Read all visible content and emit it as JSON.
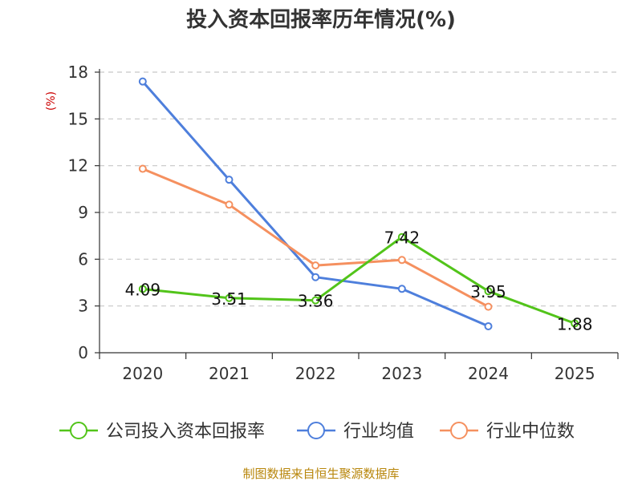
{
  "chart_data": {
    "type": "line",
    "title": "投入资本回报率历年情况(%)",
    "ylabel": "(%)",
    "xlabel": "",
    "categories": [
      "2020",
      "2021",
      "2022",
      "2023",
      "2024",
      "2025"
    ],
    "ylim": [
      0,
      18
    ],
    "yticks": [
      0,
      3,
      6,
      9,
      12,
      15,
      18
    ],
    "grid": true,
    "legend_position": "bottom",
    "series": [
      {
        "name": "公司投入资本回报率",
        "color": "#52c41a",
        "values": [
          4.09,
          3.51,
          3.36,
          7.42,
          3.95,
          1.88
        ],
        "labels": [
          "4.09",
          "3.51",
          "3.36",
          "7.42",
          "3.95",
          "1.88"
        ]
      },
      {
        "name": "行业均值",
        "color": "#4e7fdc",
        "values": [
          17.4,
          11.1,
          4.85,
          4.1,
          1.7,
          null
        ]
      },
      {
        "name": "行业中位数",
        "color": "#f5905f",
        "values": [
          11.8,
          9.5,
          5.6,
          5.95,
          2.95,
          null
        ]
      }
    ],
    "source": "制图数据来自恒生聚源数据库"
  }
}
